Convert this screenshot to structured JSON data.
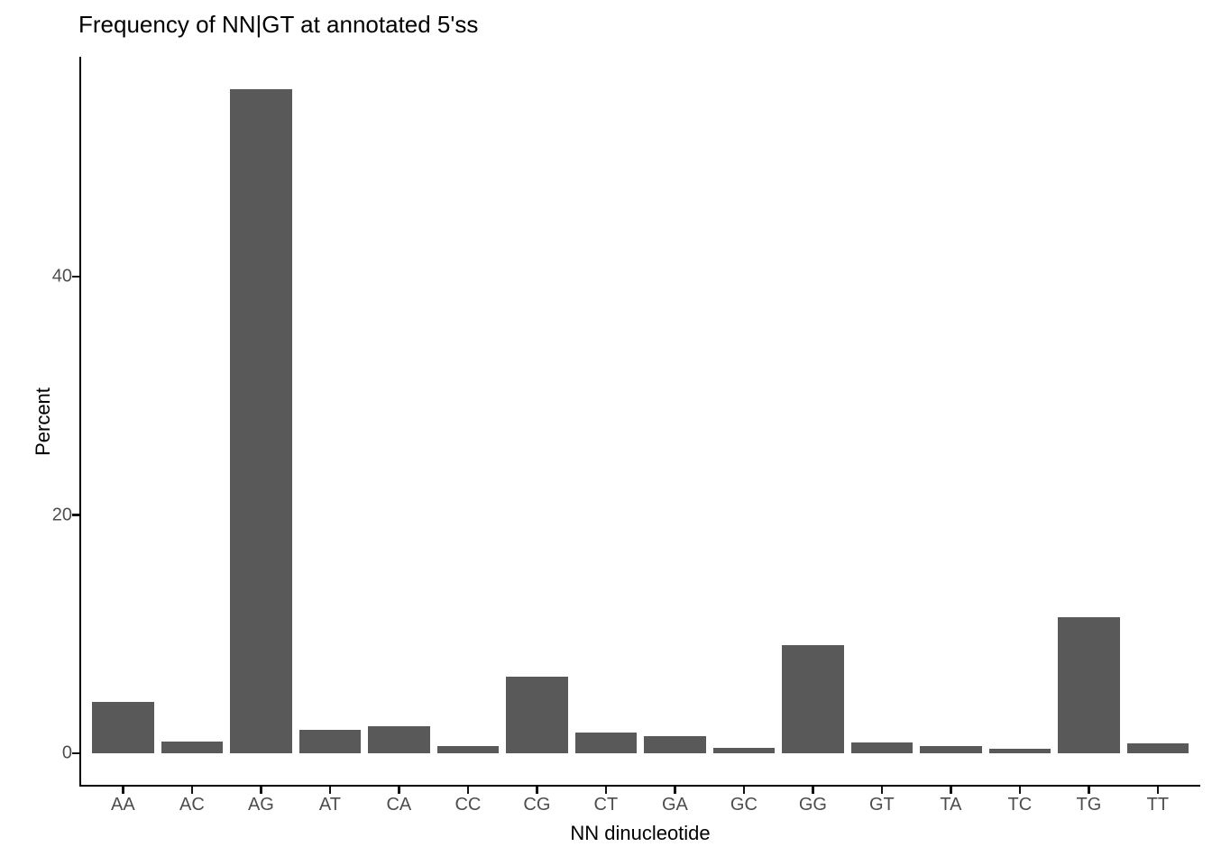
{
  "chart_data": {
    "type": "bar",
    "title": "Frequency of NN|GT at annotated 5'ss",
    "xlabel": "NN dinucleotide",
    "ylabel": "Percent",
    "categories": [
      "AA",
      "AC",
      "AG",
      "AT",
      "CA",
      "CC",
      "CG",
      "CT",
      "GA",
      "GC",
      "GG",
      "GT",
      "TA",
      "TC",
      "TG",
      "TT"
    ],
    "values": [
      4.3,
      1.0,
      55.7,
      2.0,
      2.3,
      0.63,
      6.4,
      1.75,
      1.4,
      0.45,
      9.1,
      0.9,
      0.6,
      0.4,
      11.4,
      0.85
    ],
    "yticks": [
      0,
      20,
      40
    ],
    "ylim": [
      0,
      58.4
    ],
    "bar_color": "#595959",
    "axis_color": "#000000",
    "tick_label_color": "#4d4d4d",
    "grid": false,
    "legend": false
  }
}
